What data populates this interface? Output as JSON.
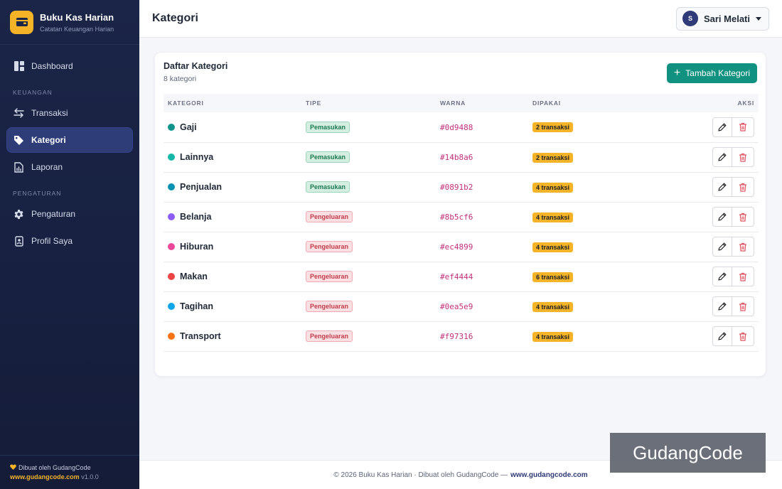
{
  "brand": {
    "title": "Buku Kas Harian",
    "subtitle": "Catatan Keuangan Harian",
    "accent": "#f5b328"
  },
  "sidebar": {
    "items": [
      {
        "label": "Dashboard",
        "icon": "dashboard-icon"
      },
      {
        "section": "KEUANGAN"
      },
      {
        "label": "Transaksi",
        "icon": "swap-arrows-icon"
      },
      {
        "label": "Kategori",
        "icon": "tag-icon",
        "active": true
      },
      {
        "label": "Laporan",
        "icon": "report-icon"
      },
      {
        "section": "PENGATURAN"
      },
      {
        "label": "Pengaturan",
        "icon": "gear-icon"
      },
      {
        "label": "Profil Saya",
        "icon": "profile-icon"
      }
    ],
    "footer": {
      "made_by": "Dibuat oleh GudangCode",
      "link": "www.gudangcode.com",
      "version": "v1.0.0"
    }
  },
  "header": {
    "title": "Kategori",
    "user": {
      "initial": "S",
      "name": "Sari Melati"
    }
  },
  "card": {
    "title": "Daftar Kategori",
    "count": "8 kategori",
    "add_label": "Tambah Kategori",
    "columns": [
      "KATEGORI",
      "TIPE",
      "WARNA",
      "DIPAKAI",
      "AKSI"
    ],
    "rows": [
      {
        "name": "Gaji",
        "type": "Pemasukan",
        "kind": "in",
        "color": "#0d9488",
        "used": "2 transaksi"
      },
      {
        "name": "Lainnya",
        "type": "Pemasukan",
        "kind": "in",
        "color": "#14b8a6",
        "used": "2 transaksi"
      },
      {
        "name": "Penjualan",
        "type": "Pemasukan",
        "kind": "in",
        "color": "#0891b2",
        "used": "4 transaksi"
      },
      {
        "name": "Belanja",
        "type": "Pengeluaran",
        "kind": "out",
        "color": "#8b5cf6",
        "used": "4 transaksi"
      },
      {
        "name": "Hiburan",
        "type": "Pengeluaran",
        "kind": "out",
        "color": "#ec4899",
        "used": "4 transaksi"
      },
      {
        "name": "Makan",
        "type": "Pengeluaran",
        "kind": "out",
        "color": "#ef4444",
        "used": "6 transaksi"
      },
      {
        "name": "Tagihan",
        "type": "Pengeluaran",
        "kind": "out",
        "color": "#0ea5e9",
        "used": "4 transaksi"
      },
      {
        "name": "Transport",
        "type": "Pengeluaran",
        "kind": "out",
        "color": "#f97316",
        "used": "4 transaksi"
      }
    ]
  },
  "footer": {
    "text": "© 2026 Buku Kas Harian · Dibuat oleh GudangCode —",
    "link": "www.gudangcode.com"
  },
  "watermark": "GudangCode"
}
